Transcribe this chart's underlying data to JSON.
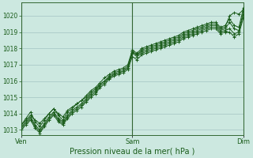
{
  "title": "",
  "xlabel": "Pression niveau de la mer( hPa )",
  "ylabel": "",
  "bg_color": "#cce8e0",
  "plot_bg_color": "#cce8e0",
  "grid_color": "#99bbbb",
  "line_color": "#1a5c1a",
  "marker_color": "#1a5c1a",
  "vline_color": "#336633",
  "ylim": [
    1012.7,
    1020.8
  ],
  "yticks": [
    1013,
    1014,
    1015,
    1016,
    1017,
    1018,
    1019,
    1020
  ],
  "xtick_labels": [
    "Ven",
    "Sam",
    "Dim"
  ],
  "xtick_positions": [
    0.0,
    0.5,
    1.0
  ],
  "num_points": 49,
  "lines": [
    [
      1013.3,
      1013.6,
      1013.9,
      1013.6,
      1013.4,
      1013.7,
      1014.0,
      1014.3,
      1014.0,
      1013.8,
      1014.2,
      1014.4,
      1014.6,
      1014.8,
      1015.0,
      1015.3,
      1015.5,
      1015.8,
      1016.0,
      1016.2,
      1016.4,
      1016.5,
      1016.6,
      1016.8,
      1017.8,
      1017.6,
      1017.9,
      1018.0,
      1018.1,
      1018.2,
      1018.3,
      1018.4,
      1018.5,
      1018.6,
      1018.7,
      1018.9,
      1019.0,
      1019.1,
      1019.2,
      1019.3,
      1019.4,
      1019.5,
      1019.5,
      1019.2,
      1019.3,
      1020.0,
      1020.2,
      1020.1,
      1020.4
    ],
    [
      1013.3,
      1013.7,
      1014.1,
      1013.5,
      1013.2,
      1013.6,
      1014.0,
      1014.3,
      1013.9,
      1013.6,
      1014.1,
      1014.3,
      1014.6,
      1014.8,
      1015.1,
      1015.4,
      1015.6,
      1015.9,
      1016.2,
      1016.4,
      1016.6,
      1016.7,
      1016.8,
      1017.0,
      1017.9,
      1017.7,
      1018.0,
      1018.1,
      1018.2,
      1018.3,
      1018.4,
      1018.5,
      1018.6,
      1018.7,
      1018.8,
      1019.0,
      1019.1,
      1019.2,
      1019.3,
      1019.4,
      1019.5,
      1019.6,
      1019.6,
      1019.3,
      1019.4,
      1019.8,
      1019.4,
      1019.3,
      1020.5
    ],
    [
      1013.2,
      1013.5,
      1013.8,
      1013.3,
      1013.0,
      1013.4,
      1013.8,
      1014.1,
      1013.7,
      1013.5,
      1013.9,
      1014.2,
      1014.4,
      1014.6,
      1014.9,
      1015.2,
      1015.4,
      1015.8,
      1016.0,
      1016.3,
      1016.5,
      1016.6,
      1016.7,
      1016.9,
      1017.8,
      1017.6,
      1017.8,
      1017.9,
      1018.0,
      1018.1,
      1018.2,
      1018.3,
      1018.4,
      1018.5,
      1018.6,
      1018.8,
      1018.9,
      1019.0,
      1019.1,
      1019.2,
      1019.3,
      1019.4,
      1019.4,
      1019.1,
      1019.2,
      1019.6,
      1019.2,
      1019.1,
      1020.3
    ],
    [
      1013.1,
      1013.4,
      1013.7,
      1013.2,
      1012.9,
      1013.3,
      1013.7,
      1014.0,
      1013.6,
      1013.4,
      1013.8,
      1014.1,
      1014.3,
      1014.5,
      1014.8,
      1015.1,
      1015.3,
      1015.7,
      1015.9,
      1016.2,
      1016.4,
      1016.5,
      1016.6,
      1016.8,
      1017.7,
      1017.5,
      1017.7,
      1017.8,
      1017.9,
      1018.0,
      1018.1,
      1018.2,
      1018.3,
      1018.4,
      1018.5,
      1018.7,
      1018.8,
      1018.9,
      1019.0,
      1019.1,
      1019.2,
      1019.3,
      1019.3,
      1019.0,
      1019.1,
      1019.2,
      1018.9,
      1019.0,
      1020.1
    ],
    [
      1013.0,
      1013.3,
      1013.6,
      1013.1,
      1012.8,
      1013.2,
      1013.6,
      1013.9,
      1013.5,
      1013.3,
      1013.7,
      1014.0,
      1014.2,
      1014.4,
      1014.7,
      1015.0,
      1015.2,
      1015.6,
      1015.8,
      1016.1,
      1016.3,
      1016.4,
      1016.5,
      1016.7,
      1017.5,
      1017.3,
      1017.6,
      1017.7,
      1017.8,
      1017.9,
      1018.0,
      1018.1,
      1018.2,
      1018.3,
      1018.4,
      1018.6,
      1018.7,
      1018.8,
      1018.9,
      1019.0,
      1019.1,
      1019.2,
      1019.2,
      1018.9,
      1019.0,
      1019.0,
      1018.7,
      1018.9,
      1019.9
    ]
  ]
}
